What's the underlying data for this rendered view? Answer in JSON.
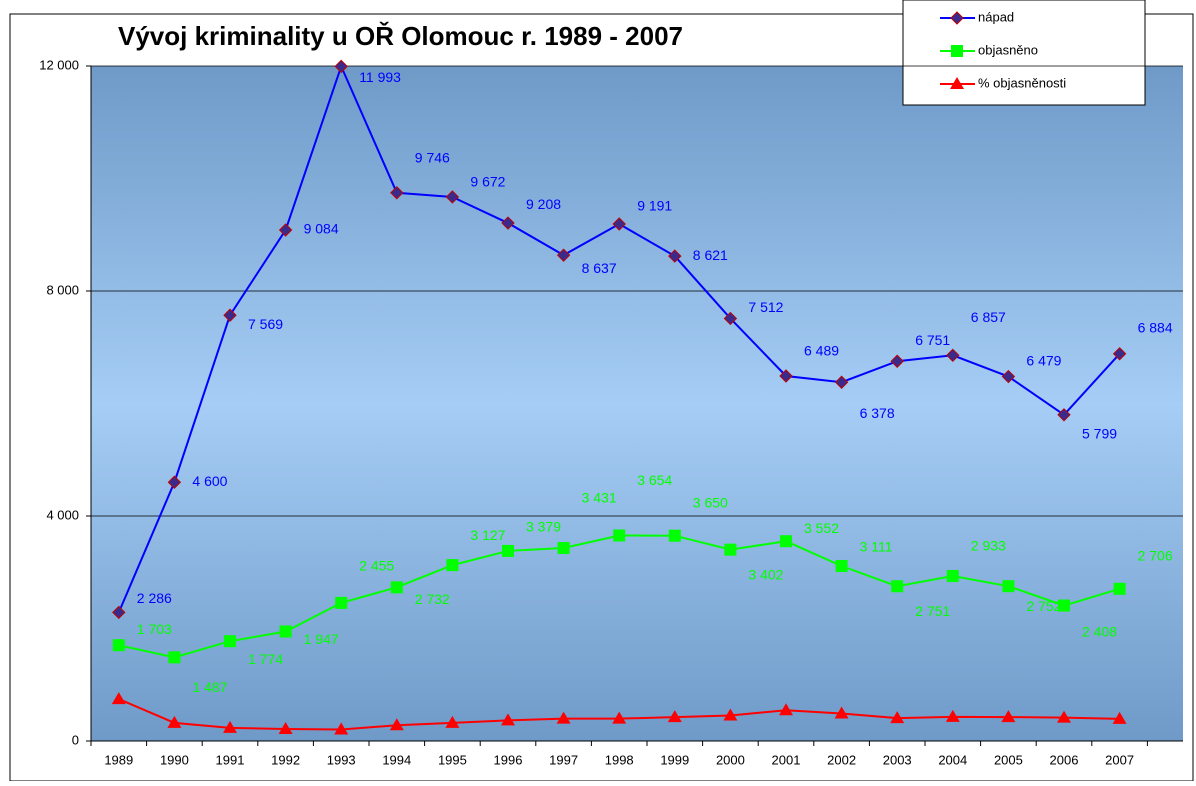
{
  "chart_data": {
    "type": "line",
    "title": "Vývoj kriminality u OŘ Olomouc r. 1989 - 2007",
    "categories": [
      "1989",
      "1990",
      "1991",
      "1992",
      "1993",
      "1994",
      "1995",
      "1996",
      "1997",
      "1998",
      "1999",
      "2000",
      "2001",
      "2002",
      "2003",
      "2004",
      "2005",
      "2006",
      "2007"
    ],
    "ylim": [
      0,
      12000
    ],
    "yticks": [
      0,
      {
        "value": 4000,
        "label": "4 000"
      },
      {
        "value": 8000,
        "label": "8 000"
      },
      {
        "value": 12000,
        "label": "12 000"
      }
    ],
    "grid": true,
    "legend": "top-right",
    "series": [
      {
        "name": "nápad",
        "color": "#0000ff",
        "marker": "diamond",
        "values": [
          2286,
          4600,
          7569,
          9084,
          11993,
          9746,
          9672,
          9208,
          8637,
          9191,
          8621,
          7512,
          6489,
          6378,
          6751,
          6857,
          6479,
          5799,
          6884
        ],
        "value_labels": [
          "2 286",
          "4 600",
          "7 569",
          "9 084",
          "11 993",
          "9 746",
          "9 672",
          "9 208",
          "8 637",
          "9 191",
          "8 621",
          "7 512",
          "6 489",
          "6 378",
          "6 751",
          "6 857",
          "6 479",
          "5 799",
          "6 884"
        ]
      },
      {
        "name": "objasněno",
        "color": "#00ff00",
        "marker": "square",
        "values": [
          1703,
          1487,
          1774,
          1947,
          2455,
          2732,
          3127,
          3379,
          3431,
          3654,
          3650,
          3402,
          3552,
          3111,
          2751,
          2933,
          2752,
          2408,
          2706
        ],
        "value_labels": [
          "1 703",
          "1 487",
          "1 774",
          "1 947",
          "2 455",
          "2 732",
          "3 127",
          "3 379",
          "3 431",
          "3 654",
          "3 650",
          "3 402",
          "3 552",
          "3 111",
          "2 751",
          "2 933",
          "2 752",
          "2 408",
          "2 706"
        ]
      },
      {
        "name": "% objasněnosti",
        "color": "#ff0000",
        "marker": "triangle",
        "values": [
          745,
          323,
          234,
          214,
          204,
          280,
          323,
          367,
          397,
          398,
          424,
          453,
          547,
          488,
          407,
          428,
          425,
          415,
          393
        ]
      }
    ]
  }
}
